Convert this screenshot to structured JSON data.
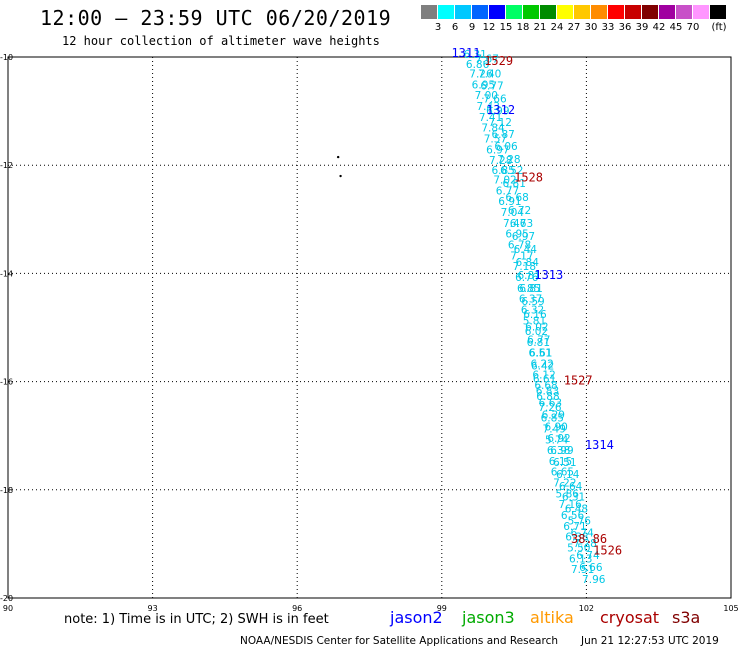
{
  "header": {
    "title": "12:00 – 23:59 UTC 06/20/2019",
    "subtitle": "12 hour collection of altimeter wave heights"
  },
  "legend": {
    "colors": [
      "#7f7f7f",
      "#00ffff",
      "#00c8ff",
      "#0064ff",
      "#0000ff",
      "#00ff64",
      "#00c800",
      "#008c00",
      "#ffff00",
      "#ffc800",
      "#ff8c00",
      "#ff0000",
      "#c80000",
      "#800000",
      "#a000a0",
      "#c850c8",
      "#ff96ff",
      "#000000"
    ],
    "ticks": [
      "3",
      "6",
      "9",
      "12",
      "15",
      "18",
      "21",
      "24",
      "27",
      "30",
      "33",
      "36",
      "39",
      "42",
      "45",
      "70"
    ],
    "unit": "(ft)"
  },
  "map": {
    "lon_ticks": [
      "90",
      "93",
      "96",
      "99",
      "102",
      "105"
    ],
    "lat_ticks": [
      "-10",
      "-12",
      "-14",
      "-16",
      "-18",
      "-20"
    ],
    "lon_range": [
      90,
      105
    ],
    "lat_range": [
      -20,
      -10
    ],
    "grid": "dotted",
    "track_color": "#00c8e6",
    "islands": [
      {
        "lon": 96.85,
        "lat": -11.85
      },
      {
        "lon": 96.9,
        "lat": -12.2
      }
    ],
    "swh_labels": [
      {
        "v": "6.31",
        "lon": 99.45,
        "lat": -10.02
      },
      {
        "v": "6.86",
        "lon": 99.5,
        "lat": -10.2
      },
      {
        "v": "7.26",
        "lon": 99.57,
        "lat": -10.38
      },
      {
        "v": "6.95",
        "lon": 99.62,
        "lat": -10.58
      },
      {
        "v": "7.00",
        "lon": 99.68,
        "lat": -10.78
      },
      {
        "v": "7.43",
        "lon": 99.72,
        "lat": -10.98
      },
      {
        "v": "7.41",
        "lon": 99.77,
        "lat": -11.18
      },
      {
        "v": "7.84",
        "lon": 99.82,
        "lat": -11.38
      },
      {
        "v": "7.57",
        "lon": 99.87,
        "lat": -11.58
      },
      {
        "v": "6.97",
        "lon": 99.92,
        "lat": -11.78
      },
      {
        "v": "7.28",
        "lon": 99.98,
        "lat": -11.98
      },
      {
        "v": "6.85",
        "lon": 100.03,
        "lat": -12.16
      },
      {
        "v": "7.02",
        "lon": 100.07,
        "lat": -12.34
      },
      {
        "v": "6.77",
        "lon": 100.12,
        "lat": -12.54
      },
      {
        "v": "6.91",
        "lon": 100.17,
        "lat": -12.74
      },
      {
        "v": "7.04",
        "lon": 100.22,
        "lat": -12.94
      },
      {
        "v": "7.47",
        "lon": 100.27,
        "lat": -13.14
      },
      {
        "v": "6.95",
        "lon": 100.32,
        "lat": -13.34
      },
      {
        "v": "6.78",
        "lon": 100.37,
        "lat": -13.54
      },
      {
        "v": "7.17",
        "lon": 100.42,
        "lat": -13.74
      },
      {
        "v": "7.18",
        "lon": 100.47,
        "lat": -13.94
      },
      {
        "v": "6.76",
        "lon": 100.52,
        "lat": -14.14
      },
      {
        "v": "6.85",
        "lon": 100.56,
        "lat": -14.34
      },
      {
        "v": "6.37",
        "lon": 100.6,
        "lat": -14.54
      },
      {
        "v": "6.32",
        "lon": 100.64,
        "lat": -14.74
      },
      {
        "v": "5.81",
        "lon": 100.68,
        "lat": -14.94
      },
      {
        "v": "6.02",
        "lon": 100.72,
        "lat": -15.14
      },
      {
        "v": "6.81",
        "lon": 100.76,
        "lat": -15.34
      },
      {
        "v": "6.51",
        "lon": 100.8,
        "lat": -15.54
      },
      {
        "v": "6.22",
        "lon": 100.84,
        "lat": -15.74
      },
      {
        "v": "6.12",
        "lon": 100.88,
        "lat": -15.94
      },
      {
        "v": "6.68",
        "lon": 100.92,
        "lat": -16.14
      },
      {
        "v": "6.88",
        "lon": 100.96,
        "lat": -16.34
      },
      {
        "v": "7.26",
        "lon": 101.0,
        "lat": -16.54
      },
      {
        "v": "6.85",
        "lon": 101.05,
        "lat": -16.74
      },
      {
        "v": "7.49",
        "lon": 101.09,
        "lat": -16.94
      },
      {
        "v": "5.74",
        "lon": 101.14,
        "lat": -17.14
      },
      {
        "v": "6.38",
        "lon": 101.18,
        "lat": -17.34
      },
      {
        "v": "6.15",
        "lon": 101.22,
        "lat": -17.54
      },
      {
        "v": "6.65",
        "lon": 101.26,
        "lat": -17.74
      },
      {
        "v": "7.22",
        "lon": 101.31,
        "lat": -17.94
      },
      {
        "v": "5.86",
        "lon": 101.36,
        "lat": -18.14
      },
      {
        "v": "7.16",
        "lon": 101.42,
        "lat": -18.34
      },
      {
        "v": "6.56",
        "lon": 101.47,
        "lat": -18.54
      },
      {
        "v": "6.71",
        "lon": 101.52,
        "lat": -18.74
      },
      {
        "v": "6.38",
        "lon": 101.56,
        "lat": -18.94
      },
      {
        "v": "5.50",
        "lon": 101.6,
        "lat": -19.14
      },
      {
        "v": "6.13",
        "lon": 101.64,
        "lat": -19.34
      },
      {
        "v": "7.51",
        "lon": 101.68,
        "lat": -19.54
      },
      {
        "v": "7.67",
        "lon": 99.7,
        "lat": -10.1
      },
      {
        "v": "7.40",
        "lon": 99.75,
        "lat": -10.38
      },
      {
        "v": "6.77",
        "lon": 99.8,
        "lat": -10.6
      },
      {
        "v": "7.66",
        "lon": 99.86,
        "lat": -10.84
      },
      {
        "v": "6.99",
        "lon": 99.92,
        "lat": -11.06
      },
      {
        "v": "7.12",
        "lon": 99.97,
        "lat": -11.28
      },
      {
        "v": "6.87",
        "lon": 100.03,
        "lat": -11.5
      },
      {
        "v": "6.06",
        "lon": 100.09,
        "lat": -11.72
      },
      {
        "v": "7.28",
        "lon": 100.15,
        "lat": -11.96
      },
      {
        "v": "6.52",
        "lon": 100.21,
        "lat": -12.16
      },
      {
        "v": "6.81",
        "lon": 100.26,
        "lat": -12.4
      },
      {
        "v": "6.68",
        "lon": 100.32,
        "lat": -12.66
      },
      {
        "v": "6.72",
        "lon": 100.37,
        "lat": -12.9
      },
      {
        "v": "6.63",
        "lon": 100.41,
        "lat": -13.14
      },
      {
        "v": "6.97",
        "lon": 100.45,
        "lat": -13.38
      },
      {
        "v": "6.44",
        "lon": 100.49,
        "lat": -13.62
      },
      {
        "v": "6.84",
        "lon": 100.53,
        "lat": -13.86
      },
      {
        "v": "6.81",
        "lon": 100.57,
        "lat": -14.1
      },
      {
        "v": "6.81",
        "lon": 100.61,
        "lat": -14.34
      },
      {
        "v": "6.59",
        "lon": 100.65,
        "lat": -14.58
      },
      {
        "v": "6.16",
        "lon": 100.69,
        "lat": -14.82
      },
      {
        "v": "6.02",
        "lon": 100.73,
        "lat": -15.06
      },
      {
        "v": "6.77",
        "lon": 100.77,
        "lat": -15.3
      },
      {
        "v": "6.61",
        "lon": 100.81,
        "lat": -15.54
      },
      {
        "v": "6.42",
        "lon": 100.85,
        "lat": -15.78
      },
      {
        "v": "6.61",
        "lon": 100.89,
        "lat": -16.02
      },
      {
        "v": "6.83",
        "lon": 100.95,
        "lat": -16.24
      },
      {
        "v": "6.63",
        "lon": 101.01,
        "lat": -16.46
      },
      {
        "v": "6.29",
        "lon": 101.07,
        "lat": -16.68
      },
      {
        "v": "6.90",
        "lon": 101.13,
        "lat": -16.9
      },
      {
        "v": "6.92",
        "lon": 101.19,
        "lat": -17.12
      },
      {
        "v": "6.99",
        "lon": 101.25,
        "lat": -17.34
      },
      {
        "v": "6.51",
        "lon": 101.31,
        "lat": -17.56
      },
      {
        "v": "6.14",
        "lon": 101.37,
        "lat": -17.78
      },
      {
        "v": "6.64",
        "lon": 101.43,
        "lat": -18.0
      },
      {
        "v": "6.31",
        "lon": 101.49,
        "lat": -18.2
      },
      {
        "v": "6.48",
        "lon": 101.55,
        "lat": -18.42
      },
      {
        "v": "5.76",
        "lon": 101.61,
        "lat": -18.64
      },
      {
        "v": "6.74",
        "lon": 101.67,
        "lat": -18.86
      },
      {
        "v": "7.28",
        "lon": 101.73,
        "lat": -19.06
      },
      {
        "v": "6.74",
        "lon": 101.79,
        "lat": -19.28
      },
      {
        "v": "6.66",
        "lon": 101.85,
        "lat": -19.5
      },
      {
        "v": "7.96",
        "lon": 101.91,
        "lat": -19.72
      }
    ],
    "orbits": [
      {
        "v": "1311",
        "sat": "jason2",
        "lon": 99.2,
        "lat": -10.0
      },
      {
        "v": "1529",
        "sat": "cryosat",
        "lon": 99.88,
        "lat": -10.15
      },
      {
        "v": "1312",
        "sat": "jason2",
        "lon": 99.92,
        "lat": -11.05
      },
      {
        "v": "1528",
        "sat": "cryosat",
        "lon": 100.5,
        "lat": -12.3
      },
      {
        "v": "1313",
        "sat": "jason2",
        "lon": 100.92,
        "lat": -14.1
      },
      {
        "v": "1527",
        "sat": "cryosat",
        "lon": 101.53,
        "lat": -16.05
      },
      {
        "v": "1314",
        "sat": "jason2",
        "lon": 101.97,
        "lat": -17.25
      },
      {
        "v": "38.86",
        "sat": "cryosat",
        "lon": 101.68,
        "lat": -18.98
      },
      {
        "v": "1526",
        "sat": "cryosat",
        "lon": 102.14,
        "lat": -19.2
      }
    ]
  },
  "footer": {
    "note": "note: 1) Time is in UTC; 2) SWH is in feet",
    "satellites": [
      {
        "name": "jason2",
        "color": "#0000ff"
      },
      {
        "name": "jason3",
        "color": "#00aa00"
      },
      {
        "name": "altika",
        "color": "#ff9900"
      },
      {
        "name": "cryosat",
        "color": "#aa0000"
      },
      {
        "name": "s3a",
        "color": "#800000"
      }
    ],
    "credit": "NOAA/NESDIS Center for Satellite Applications and Research",
    "timestamp": "Jun 21 12:27:53 UTC 2019"
  }
}
